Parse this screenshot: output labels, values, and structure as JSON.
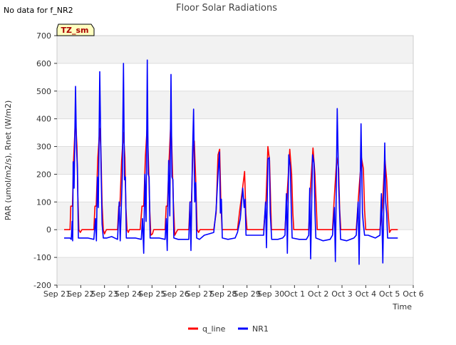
{
  "corner_note": "No data for f_NR2",
  "chart_data": {
    "type": "line",
    "title": "Floor Solar Radiations",
    "xlabel": "Time",
    "ylabel": "PAR (umol/m2/s), Rnet (W/m2)",
    "ylim": [
      -200,
      700
    ],
    "xlim": [
      0,
      15
    ],
    "yticks": [
      -200,
      -100,
      0,
      100,
      200,
      300,
      400,
      500,
      600,
      700
    ],
    "xticks": [
      0,
      1,
      2,
      3,
      4,
      5,
      6,
      7,
      8,
      9,
      10,
      11,
      12,
      13,
      14,
      15
    ],
    "xtick_labels": [
      "Sep 21",
      "Sep 22",
      "Sep 23",
      "Sep 24",
      "Sep 25",
      "Sep 26",
      "Sep 27",
      "Sep 28",
      "Sep 29",
      "Sep 30",
      "Oct 1",
      "Oct 2",
      "Oct 3",
      "Oct 4",
      "Oct 5",
      "Oct 6"
    ],
    "badge": "TZ_sm",
    "legend_position": "bottom-center",
    "grid": true,
    "series": [
      {
        "name": "q_line",
        "color": "#ff0000",
        "points": [
          [
            0.3,
            0
          ],
          [
            0.55,
            0
          ],
          [
            0.58,
            85
          ],
          [
            0.65,
            85
          ],
          [
            0.7,
            250
          ],
          [
            0.78,
            407
          ],
          [
            0.84,
            300
          ],
          [
            0.88,
            120
          ],
          [
            0.92,
            0
          ],
          [
            0.98,
            -10
          ],
          [
            1.05,
            0
          ],
          [
            1.55,
            0
          ],
          [
            1.6,
            85
          ],
          [
            1.65,
            85
          ],
          [
            1.72,
            260
          ],
          [
            1.8,
            365
          ],
          [
            1.85,
            280
          ],
          [
            1.9,
            90
          ],
          [
            1.95,
            0
          ],
          [
            2.0,
            -15
          ],
          [
            2.08,
            0
          ],
          [
            2.55,
            0
          ],
          [
            2.6,
            85
          ],
          [
            2.65,
            85
          ],
          [
            2.72,
            250
          ],
          [
            2.8,
            350
          ],
          [
            2.86,
            260
          ],
          [
            2.9,
            80
          ],
          [
            2.95,
            0
          ],
          [
            3.0,
            -10
          ],
          [
            3.05,
            0
          ],
          [
            3.5,
            0
          ],
          [
            3.58,
            85
          ],
          [
            3.65,
            85
          ],
          [
            3.72,
            260
          ],
          [
            3.8,
            380
          ],
          [
            3.86,
            220
          ],
          [
            3.9,
            80
          ],
          [
            3.95,
            -20
          ],
          [
            4.02,
            -15
          ],
          [
            4.07,
            0
          ],
          [
            4.55,
            0
          ],
          [
            4.6,
            85
          ],
          [
            4.65,
            85
          ],
          [
            4.72,
            250
          ],
          [
            4.8,
            405
          ],
          [
            4.86,
            220
          ],
          [
            4.9,
            100
          ],
          [
            4.96,
            -20
          ],
          [
            5.02,
            -10
          ],
          [
            5.08,
            0
          ],
          [
            5.55,
            0
          ],
          [
            5.6,
            100
          ],
          [
            5.66,
            100
          ],
          [
            5.72,
            280
          ],
          [
            5.78,
            320
          ],
          [
            5.84,
            180
          ],
          [
            5.9,
            0
          ],
          [
            5.96,
            -10
          ],
          [
            6.02,
            0
          ],
          [
            6.6,
            0
          ],
          [
            6.7,
            60
          ],
          [
            6.78,
            270
          ],
          [
            6.85,
            290
          ],
          [
            6.9,
            100
          ],
          [
            6.95,
            0
          ],
          [
            7.6,
            0
          ],
          [
            7.7,
            75
          ],
          [
            7.8,
            140
          ],
          [
            7.9,
            210
          ],
          [
            7.95,
            60
          ],
          [
            8.0,
            0
          ],
          [
            8.7,
            0
          ],
          [
            8.8,
            100
          ],
          [
            8.88,
            300
          ],
          [
            8.95,
            250
          ],
          [
            9.0,
            85
          ],
          [
            9.03,
            0
          ],
          [
            9.6,
            0
          ],
          [
            9.7,
            140
          ],
          [
            9.8,
            290
          ],
          [
            9.88,
            200
          ],
          [
            9.93,
            60
          ],
          [
            9.97,
            0
          ],
          [
            10.6,
            0
          ],
          [
            10.68,
            160
          ],
          [
            10.78,
            295
          ],
          [
            10.86,
            200
          ],
          [
            10.92,
            80
          ],
          [
            10.96,
            0
          ],
          [
            11.6,
            0
          ],
          [
            11.68,
            120
          ],
          [
            11.78,
            260
          ],
          [
            11.86,
            220
          ],
          [
            11.9,
            75
          ],
          [
            11.95,
            0
          ],
          [
            12.6,
            0
          ],
          [
            12.72,
            150
          ],
          [
            12.82,
            260
          ],
          [
            12.9,
            220
          ],
          [
            12.95,
            70
          ],
          [
            13.0,
            0
          ],
          [
            13.6,
            0
          ],
          [
            13.7,
            80
          ],
          [
            13.8,
            260
          ],
          [
            13.88,
            180
          ],
          [
            13.94,
            60
          ],
          [
            14.0,
            -10
          ],
          [
            14.07,
            0
          ],
          [
            14.35,
            0
          ]
        ]
      },
      {
        "name": "NR1",
        "color": "#0000ff",
        "points": [
          [
            0.3,
            -30
          ],
          [
            0.55,
            -30
          ],
          [
            0.6,
            -35
          ],
          [
            0.64,
            30
          ],
          [
            0.66,
            -40
          ],
          [
            0.68,
            245
          ],
          [
            0.72,
            150
          ],
          [
            0.78,
            517
          ],
          [
            0.82,
            300
          ],
          [
            0.86,
            220
          ],
          [
            0.9,
            -30
          ],
          [
            1.0,
            -30
          ],
          [
            1.1,
            -30
          ],
          [
            1.2,
            -30
          ],
          [
            1.3,
            -30
          ],
          [
            1.55,
            -35
          ],
          [
            1.62,
            40
          ],
          [
            1.66,
            -40
          ],
          [
            1.7,
            190
          ],
          [
            1.74,
            80
          ],
          [
            1.8,
            570
          ],
          [
            1.86,
            200
          ],
          [
            1.9,
            20
          ],
          [
            1.95,
            -30
          ],
          [
            2.1,
            -30
          ],
          [
            2.3,
            -25
          ],
          [
            2.55,
            -35
          ],
          [
            2.62,
            100
          ],
          [
            2.66,
            -40
          ],
          [
            2.7,
            60
          ],
          [
            2.75,
            200
          ],
          [
            2.8,
            600
          ],
          [
            2.84,
            180
          ],
          [
            2.88,
            190
          ],
          [
            2.92,
            -30
          ],
          [
            3.1,
            -30
          ],
          [
            3.3,
            -30
          ],
          [
            3.55,
            -35
          ],
          [
            3.6,
            40
          ],
          [
            3.65,
            -85
          ],
          [
            3.7,
            200
          ],
          [
            3.75,
            30
          ],
          [
            3.8,
            612
          ],
          [
            3.84,
            200
          ],
          [
            3.88,
            190
          ],
          [
            3.92,
            -30
          ],
          [
            4.1,
            -30
          ],
          [
            4.3,
            -30
          ],
          [
            4.55,
            -35
          ],
          [
            4.6,
            40
          ],
          [
            4.64,
            -75
          ],
          [
            4.7,
            250
          ],
          [
            4.75,
            50
          ],
          [
            4.8,
            560
          ],
          [
            4.84,
            190
          ],
          [
            4.88,
            180
          ],
          [
            4.92,
            -30
          ],
          [
            5.1,
            -35
          ],
          [
            5.3,
            -35
          ],
          [
            5.55,
            -35
          ],
          [
            5.6,
            100
          ],
          [
            5.64,
            -75
          ],
          [
            5.7,
            250
          ],
          [
            5.75,
            435
          ],
          [
            5.8,
            100
          ],
          [
            5.84,
            170
          ],
          [
            5.88,
            -30
          ],
          [
            6.0,
            -35
          ],
          [
            6.2,
            -20
          ],
          [
            6.4,
            -15
          ],
          [
            6.6,
            -10
          ],
          [
            6.7,
            70
          ],
          [
            6.78,
            200
          ],
          [
            6.84,
            280
          ],
          [
            6.88,
            60
          ],
          [
            6.92,
            110
          ],
          [
            6.96,
            -30
          ],
          [
            7.2,
            -35
          ],
          [
            7.5,
            -30
          ],
          [
            7.6,
            -10
          ],
          [
            7.72,
            40
          ],
          [
            7.82,
            150
          ],
          [
            7.88,
            80
          ],
          [
            7.92,
            110
          ],
          [
            7.96,
            -20
          ],
          [
            8.2,
            -20
          ],
          [
            8.5,
            -20
          ],
          [
            8.7,
            -20
          ],
          [
            8.78,
            100
          ],
          [
            8.82,
            -65
          ],
          [
            8.88,
            255
          ],
          [
            8.94,
            260
          ],
          [
            8.98,
            60
          ],
          [
            9.04,
            -35
          ],
          [
            9.3,
            -35
          ],
          [
            9.5,
            -30
          ],
          [
            9.6,
            -20
          ],
          [
            9.66,
            130
          ],
          [
            9.7,
            -85
          ],
          [
            9.76,
            270
          ],
          [
            9.82,
            230
          ],
          [
            9.86,
            90
          ],
          [
            9.9,
            -30
          ],
          [
            10.2,
            -35
          ],
          [
            10.5,
            -35
          ],
          [
            10.6,
            -20
          ],
          [
            10.64,
            150
          ],
          [
            10.68,
            -105
          ],
          [
            10.76,
            270
          ],
          [
            10.82,
            240
          ],
          [
            10.86,
            70
          ],
          [
            10.9,
            -30
          ],
          [
            11.2,
            -40
          ],
          [
            11.5,
            -35
          ],
          [
            11.6,
            -20
          ],
          [
            11.68,
            80
          ],
          [
            11.72,
            -115
          ],
          [
            11.8,
            437
          ],
          [
            11.86,
            160
          ],
          [
            11.9,
            60
          ],
          [
            11.94,
            -35
          ],
          [
            12.2,
            -40
          ],
          [
            12.5,
            -30
          ],
          [
            12.6,
            -20
          ],
          [
            12.68,
            100
          ],
          [
            12.72,
            -125
          ],
          [
            12.8,
            382
          ],
          [
            12.86,
            60
          ],
          [
            12.9,
            20
          ],
          [
            12.95,
            -20
          ],
          [
            13.1,
            -20
          ],
          [
            13.4,
            -30
          ],
          [
            13.6,
            -20
          ],
          [
            13.66,
            130
          ],
          [
            13.72,
            -120
          ],
          [
            13.8,
            313
          ],
          [
            13.84,
            100
          ],
          [
            13.88,
            60
          ],
          [
            13.92,
            -30
          ],
          [
            14.2,
            -30
          ],
          [
            14.35,
            -30
          ]
        ]
      }
    ]
  }
}
